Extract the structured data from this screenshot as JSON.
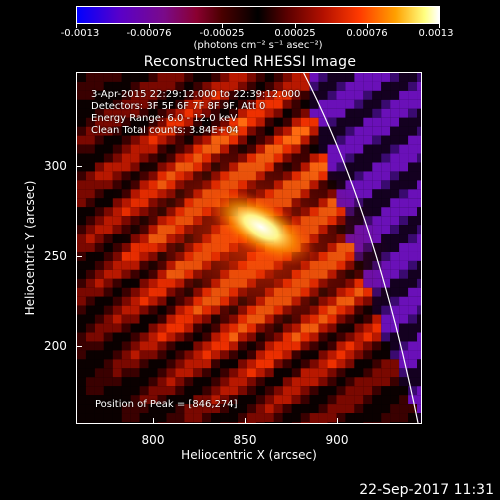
{
  "colorbar": {
    "tick_labels": [
      "-0.0013",
      "-0.00076",
      "-0.00025",
      "0.00025",
      "0.00076",
      "0.0013"
    ],
    "units": "(photons cm⁻² s⁻¹ asec⁻²)"
  },
  "title": "Reconstructed RHESSI Image",
  "info": {
    "time_range": "3-Apr-2015 22:29:12.000 to 22:39:12.000",
    "detectors": "Detectors: 3F 5F 6F 7F 8F 9F, Att 0",
    "energy_range": "Energy Range: 6.0 - 12.0 keV",
    "clean": "Clean    Total counts: 3.84E+04",
    "peak": "Position of Peak = [846,274]"
  },
  "axes": {
    "xlabel": "Heliocentric X (arcsec)",
    "ylabel": "Heliocentric Y (arcsec)",
    "xticks": [
      "800",
      "850",
      "900"
    ],
    "yticks": [
      "200",
      "250",
      "300"
    ]
  },
  "image": {
    "x_range": [
      758,
      952
    ],
    "y_range": [
      155,
      345
    ],
    "peak_position": [
      846,
      274
    ]
  },
  "footer": {
    "timestamp": "22-Sep-2017 11:31"
  }
}
